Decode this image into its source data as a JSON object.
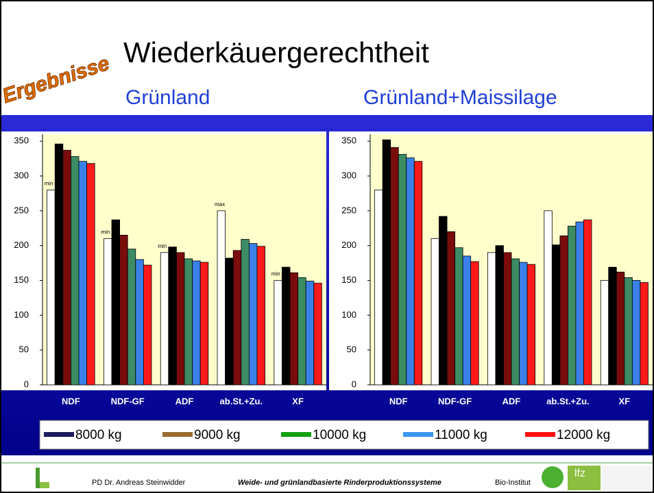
{
  "slide": {
    "title": "Wiederkäuergerechtheit",
    "badge": "Ergebnisse",
    "subtitles": [
      "Grünland",
      "Grünland+Maissilage"
    ]
  },
  "legend": {
    "items": [
      {
        "name": "8000 kg",
        "color": "#1c1c5e"
      },
      {
        "name": "9000 kg",
        "color": "#9a6a30"
      },
      {
        "name": "10000 kg",
        "color": "#10a010"
      },
      {
        "name": "11000 kg",
        "color": "#3a96f0"
      },
      {
        "name": "12000 kg",
        "color": "#ff1010"
      }
    ]
  },
  "footer": {
    "author": "PD Dr. Andreas Steinwidder",
    "project": "Weide- und grünlandbasierte Rinderproduktionssysteme",
    "institute": "Bio-Institut",
    "logo": "lfz"
  },
  "chart_data": [
    {
      "type": "bar",
      "categories": [
        "NDF",
        "NDF-GF",
        "ADF",
        "ab.St.+Zu.",
        "XF"
      ],
      "ylim": [
        0,
        360
      ],
      "yticks": [
        0,
        50,
        100,
        150,
        200,
        250,
        300,
        350
      ],
      "series": [
        {
          "color": "#ffffff",
          "values": [
            280,
            210,
            190,
            250,
            150
          ],
          "annotations": [
            "min",
            "min",
            "min",
            "max",
            "min"
          ]
        },
        {
          "color": "#000000",
          "values": [
            346,
            237,
            198,
            182,
            169
          ]
        },
        {
          "color": "#7a0c0c",
          "values": [
            337,
            215,
            190,
            193,
            161
          ]
        },
        {
          "color": "#3c8c64",
          "values": [
            328,
            195,
            181,
            209,
            154
          ]
        },
        {
          "color": "#3a80e8",
          "values": [
            321,
            180,
            178,
            203,
            149
          ]
        },
        {
          "color": "#ff1a1a",
          "values": [
            318,
            172,
            176,
            199,
            146
          ]
        }
      ]
    },
    {
      "type": "bar",
      "categories": [
        "NDF",
        "NDF-GF",
        "ADF",
        "ab.St.+Zu.",
        "XF"
      ],
      "ylim": [
        0,
        360
      ],
      "yticks": [
        0,
        50,
        100,
        150,
        200,
        250,
        300,
        350
      ],
      "series": [
        {
          "color": "#ffffff",
          "values": [
            280,
            210,
            190,
            250,
            150
          ]
        },
        {
          "color": "#000000",
          "values": [
            352,
            242,
            200,
            201,
            169
          ]
        },
        {
          "color": "#7a0c0c",
          "values": [
            341,
            220,
            190,
            214,
            162
          ]
        },
        {
          "color": "#3c8c64",
          "values": [
            331,
            197,
            181,
            228,
            154
          ]
        },
        {
          "color": "#3a80e8",
          "values": [
            326,
            185,
            176,
            234,
            150
          ]
        },
        {
          "color": "#ff1a1a",
          "values": [
            321,
            177,
            173,
            237,
            147
          ]
        }
      ]
    }
  ]
}
